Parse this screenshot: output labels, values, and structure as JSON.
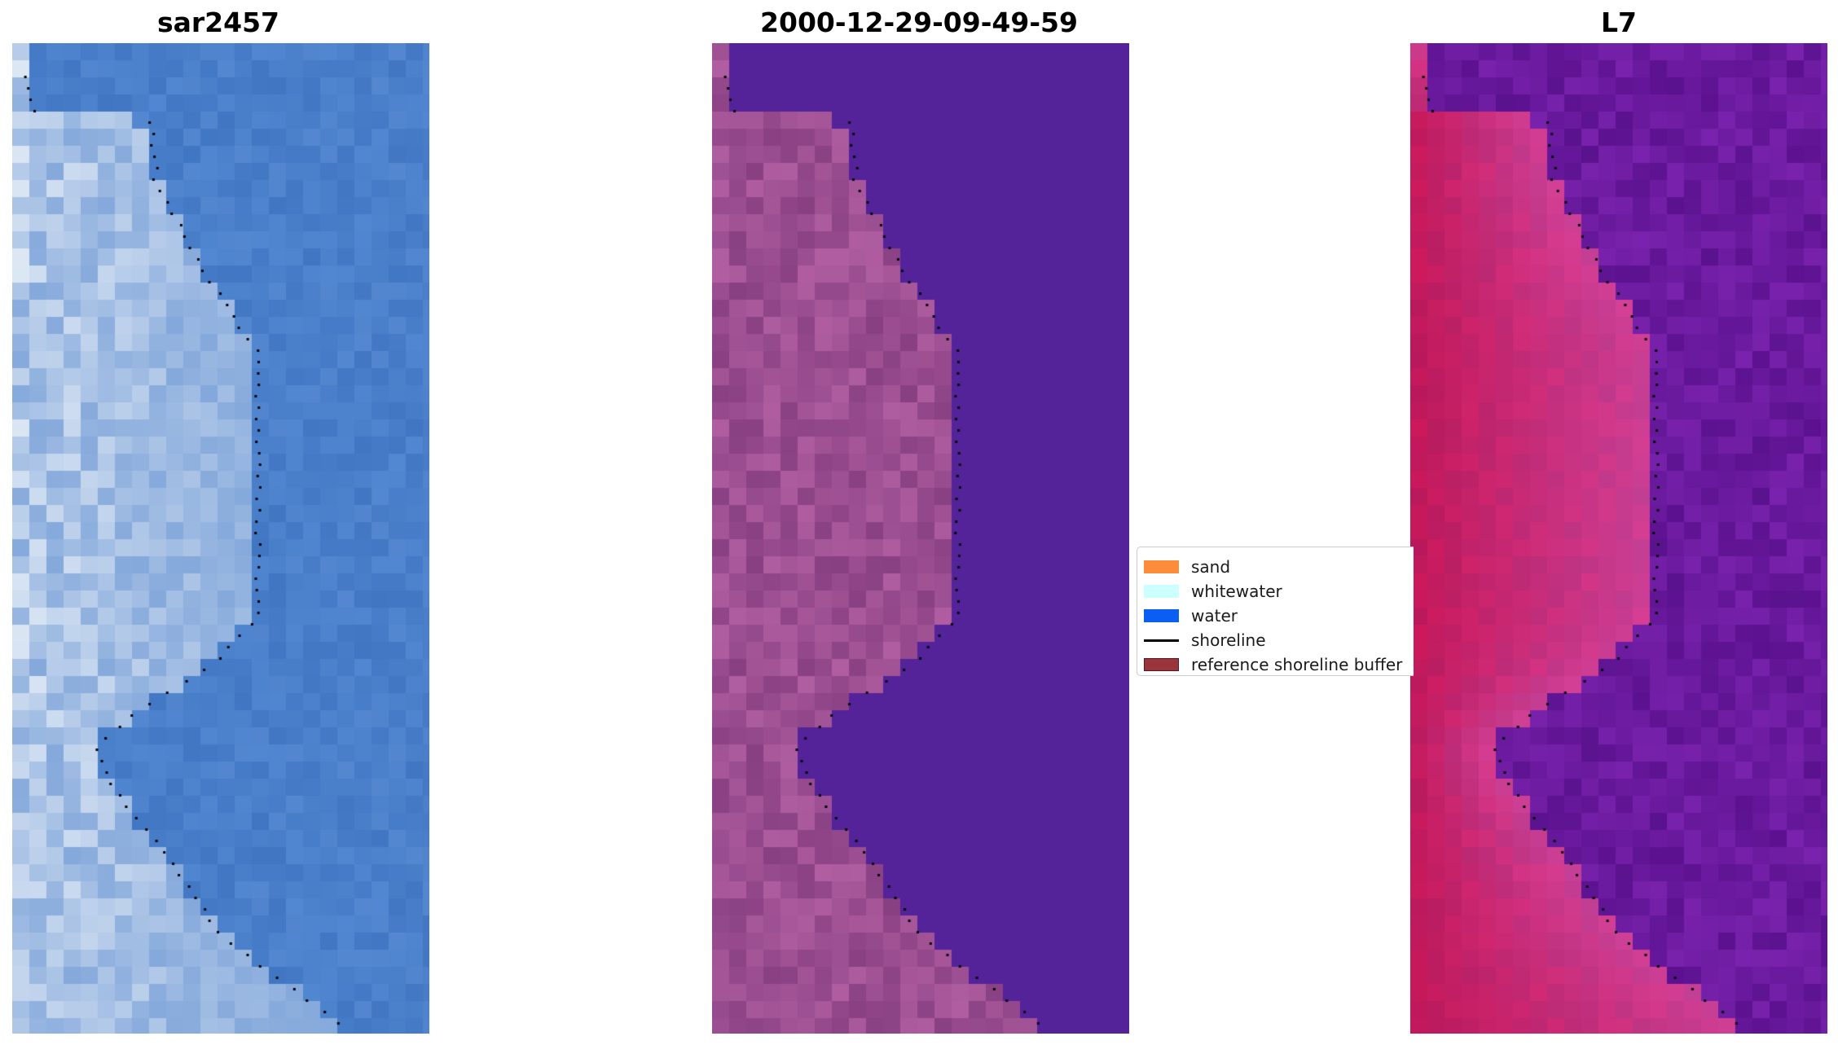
{
  "panels": [
    {
      "title": "sar2457"
    },
    {
      "title": "2000-12-29-09-49-59"
    },
    {
      "title": "L7"
    }
  ],
  "legend": {
    "items": [
      {
        "label": "sand",
        "color": "#ff8c3a"
      },
      {
        "label": "whitewater",
        "color": "#ccffff"
      },
      {
        "label": "water",
        "color": "#0a5ff2"
      },
      {
        "label": "shoreline",
        "color": "#000000"
      },
      {
        "label": "reference shoreline buffer",
        "color": "#99333c"
      }
    ]
  },
  "colors": {
    "sar_water": "#4a7fca",
    "classified_water": "#54239a",
    "classified_land": "#9c4f92",
    "l7_water": "#6a1a9e",
    "l7_land": "#c2185a",
    "shoreline_dots": "#000000"
  }
}
